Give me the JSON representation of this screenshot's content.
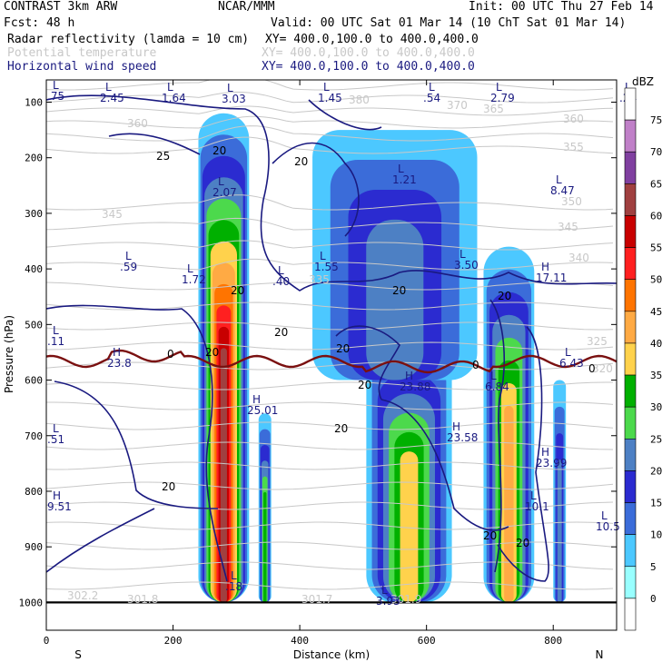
{
  "header": {
    "model": "CONTRAST  3km ARW",
    "org": "NCAR/MMM",
    "init": "Init: 00 UTC Thu 27 Feb 14",
    "fcst": "Fcst:   48 h",
    "valid": "Valid: 00 UTC Sat 01 Mar 14 (10 ChT Sat 01 Mar 14)",
    "fields": [
      {
        "name": "Radar reflectivity (lamda = 10 cm)",
        "xy": "XY= 400.0,100.0 to 400.0,400.0",
        "color": "#000000"
      },
      {
        "name": "Potential temperature",
        "xy": "XY= 400.0,100.0 to 400.0,400.0",
        "color": "#c8c8c8"
      },
      {
        "name": "Horizontal wind speed",
        "xy": "XY= 400.0,100.0 to 400.0,400.0",
        "color": "#1a1a80"
      }
    ]
  },
  "chart_data": {
    "type": "heatmap",
    "xlabel": "Distance (km)",
    "ylabel": "Pressure (hPa)",
    "xlim": [
      0,
      900
    ],
    "ylim": [
      1050,
      60
    ],
    "x_ticks": [
      0,
      200,
      400,
      600,
      800
    ],
    "y_ticks": [
      100,
      200,
      300,
      400,
      500,
      600,
      700,
      800,
      900,
      1000
    ],
    "x_end_labels": {
      "left": "S",
      "right": "N"
    },
    "colorbar": {
      "unit": "dBZ",
      "levels": [
        0,
        5,
        10,
        15,
        20,
        25,
        30,
        35,
        40,
        45,
        50,
        55,
        60,
        65,
        70,
        75
      ],
      "colors": [
        "#ffffff",
        "#99ffff",
        "#4cc8ff",
        "#3b6cd9",
        "#2b2bd0",
        "#4d80c4",
        "#4cd94c",
        "#00b000",
        "#ffd24c",
        "#ffaa44",
        "#ff7400",
        "#ff2020",
        "#c80000",
        "#a04040",
        "#8040a0",
        "#c080c8",
        "#ffffff"
      ]
    },
    "reflectivity_cells": [
      {
        "x": [
          240,
          320
        ],
        "p": [
          120,
          1000
        ],
        "max_dbz": 60
      },
      {
        "x": [
          335,
          355
        ],
        "p": [
          660,
          1000
        ],
        "max_dbz": 30
      },
      {
        "x": [
          505,
          640
        ],
        "p": [
          520,
          1000
        ],
        "max_dbz": 35
      },
      {
        "x": [
          420,
          680
        ],
        "p": [
          150,
          600
        ],
        "max_dbz": 20
      },
      {
        "x": [
          690,
          770
        ],
        "p": [
          360,
          1000
        ],
        "max_dbz": 40
      },
      {
        "x": [
          800,
          820
        ],
        "p": [
          600,
          1000
        ],
        "max_dbz": 20
      }
    ],
    "theta_labels": [
      "380",
      "370",
      "365",
      "360",
      "360",
      "355",
      "350",
      "345",
      "345",
      "340",
      "335",
      "325",
      "320",
      "302.2",
      "301.8",
      "301.7",
      "301.9"
    ],
    "wind_labels": [
      "20",
      "20",
      "20",
      "20",
      "20",
      "20",
      "20",
      "20",
      "20",
      "20",
      "20",
      "25",
      "0",
      "0",
      "0"
    ],
    "extrema": [
      {
        "type": "L",
        "value": "2.45"
      },
      {
        "type": "L",
        "value": "1.64"
      },
      {
        "type": "L",
        "value": "3.03"
      },
      {
        "type": "L",
        "value": "1.45"
      },
      {
        "type": "L",
        "value": ".54"
      },
      {
        "type": "L",
        "value": "2.79"
      },
      {
        "type": "L",
        "value": ".24"
      },
      {
        "type": "L",
        "value": "2.07"
      },
      {
        "type": "L",
        "value": "1.21"
      },
      {
        "type": "L",
        "value": "8.47"
      },
      {
        "type": "L",
        "value": ".59"
      },
      {
        "type": "L",
        "value": "1.72"
      },
      {
        "type": "L",
        "value": ".40"
      },
      {
        "type": "L",
        "value": "1.55"
      },
      {
        "type": "L",
        "value": "3.50"
      },
      {
        "type": "H",
        "value": "17.11"
      },
      {
        "type": "H",
        "value": "23.8"
      },
      {
        "type": "L",
        "value": "6.43"
      },
      {
        "type": "H",
        "value": "23.88"
      },
      {
        "type": "L",
        "value": "6.84"
      },
      {
        "type": "H",
        "value": "25.01"
      },
      {
        "type": "H",
        "value": "23.58"
      },
      {
        "type": "H",
        "value": "23.99"
      },
      {
        "type": "L",
        "value": "10.1"
      },
      {
        "type": "L",
        "value": "10.5"
      },
      {
        "type": "H",
        "value": "9.51"
      },
      {
        "type": "L",
        "value": ".18"
      },
      {
        "type": "L",
        "value": "3.93"
      },
      {
        "type": "L",
        "value": ".51"
      },
      {
        "type": "L",
        "value": ".11"
      },
      {
        "type": "L",
        "value": ".75"
      }
    ]
  }
}
